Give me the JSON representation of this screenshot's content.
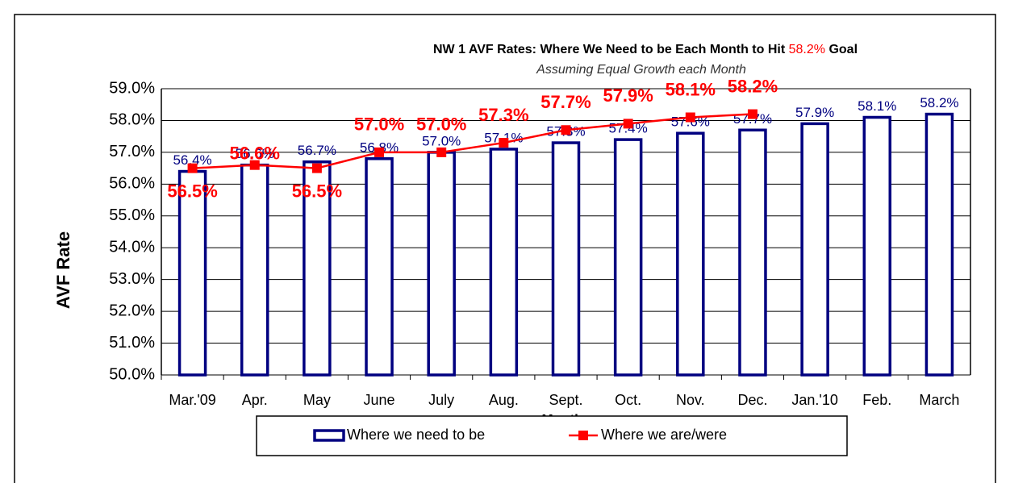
{
  "chart_data": {
    "type": "bar_line",
    "title": "NW 1 AVF Rates: Where We Need to be Each Month to Hit",
    "title_highlight": "58.2%",
    "title_end": "Goal",
    "subtitle": "Assuming Equal Growth each Month",
    "x_label": "Month",
    "y_label": "AVF Rate",
    "categories": [
      "Mar.'09",
      "Apr.",
      "May",
      "June",
      "July",
      "Aug.",
      "Sept.",
      "Oct.",
      "Nov.",
      "Dec.",
      "Jan.'10",
      "Feb.",
      "March"
    ],
    "series": [
      {
        "name": "Where we need to be",
        "type": "bar",
        "color": "#000080",
        "values": [
          56.4,
          56.6,
          56.7,
          56.8,
          57.0,
          57.1,
          57.3,
          57.4,
          57.6,
          57.7,
          57.9,
          58.1,
          58.2
        ],
        "value_labels": [
          "56.4%",
          "56.6%",
          "56.7%",
          "56.8%",
          "57.0%",
          "57.1%",
          "57.3%",
          "57.4%",
          "57.6%",
          "57.7%",
          "57.9%",
          "58.1%",
          "58.2%"
        ]
      },
      {
        "name": "Where we are/were",
        "type": "line",
        "color": "#ff0000",
        "values": [
          56.5,
          56.6,
          56.5,
          57.0,
          57.0,
          57.3,
          57.7,
          57.9,
          58.1,
          58.2,
          null,
          null,
          null
        ],
        "value_labels": [
          "56.5%",
          "56.6%",
          "56.5%",
          "57.0%",
          "57.0%",
          "57.3%",
          "57.7%",
          "57.9%",
          "58.1%",
          "58.2%",
          null,
          null,
          null
        ]
      }
    ],
    "ylim": [
      50,
      59
    ],
    "yticks": [
      {
        "value": 50,
        "label": "50.0%"
      },
      {
        "value": 51,
        "label": "51.0%"
      },
      {
        "value": 52,
        "label": "52.0%"
      },
      {
        "value": 53,
        "label": "53.0%"
      },
      {
        "value": 54,
        "label": "54.0%"
      },
      {
        "value": 55,
        "label": "55.0%"
      },
      {
        "value": 56,
        "label": "56.0%"
      },
      {
        "value": 57,
        "label": "57.0%"
      },
      {
        "value": 58,
        "label": "58.0%"
      },
      {
        "value": 59,
        "label": "59.0%"
      }
    ],
    "grid": true
  }
}
